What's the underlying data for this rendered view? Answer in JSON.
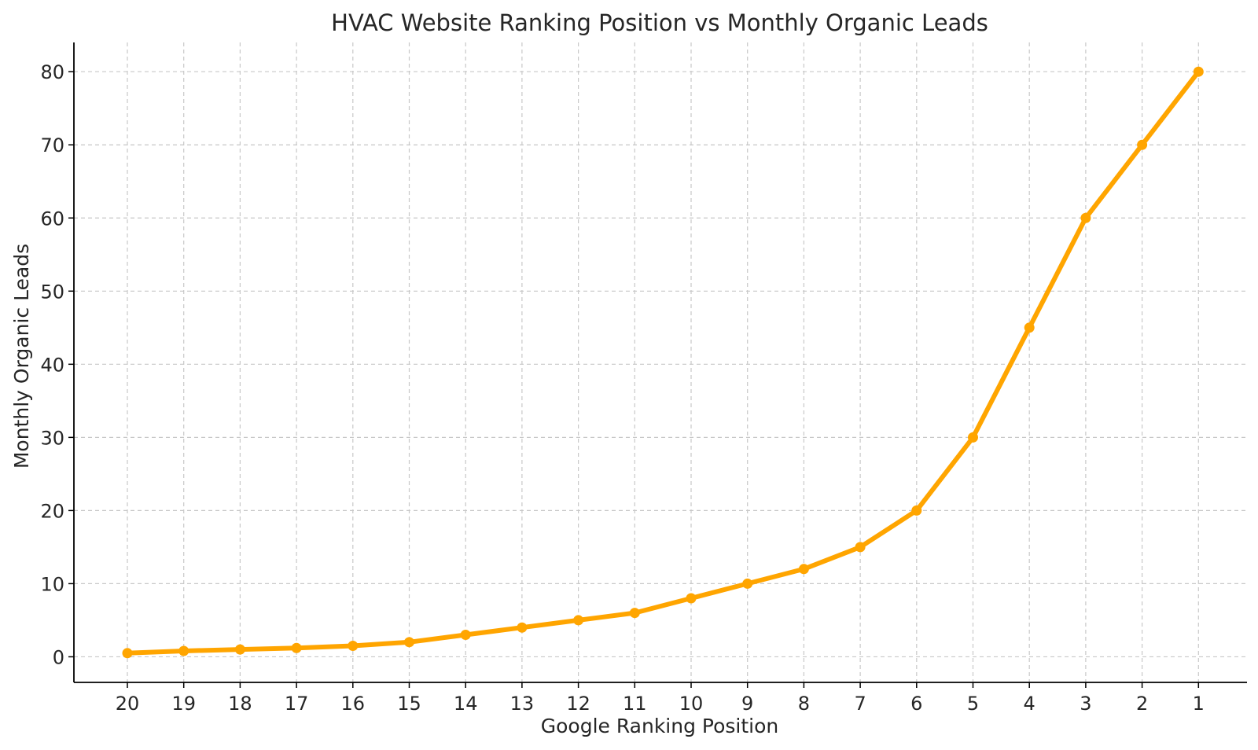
{
  "chart_data": {
    "type": "line",
    "title": "HVAC Website Ranking Position vs Monthly Organic Leads",
    "xlabel": "Google Ranking Position",
    "ylabel": "Monthly Organic Leads",
    "categories": [
      "20",
      "19",
      "18",
      "17",
      "16",
      "15",
      "14",
      "13",
      "12",
      "11",
      "10",
      "9",
      "8",
      "7",
      "6",
      "5",
      "4",
      "3",
      "2",
      "1"
    ],
    "series": [
      {
        "values": [
          0.5,
          0.8,
          1,
          1.2,
          1.5,
          2,
          3,
          4,
          5,
          6,
          8,
          10,
          12,
          15,
          20,
          30,
          45,
          60,
          70,
          80
        ],
        "color": "#FFA500"
      }
    ],
    "ylim": [
      -3.5,
      84
    ],
    "yticks": [
      "0",
      "10",
      "20",
      "30",
      "40",
      "50",
      "60",
      "70",
      "80"
    ],
    "grid": true,
    "legend": "none",
    "marker": "circle"
  }
}
